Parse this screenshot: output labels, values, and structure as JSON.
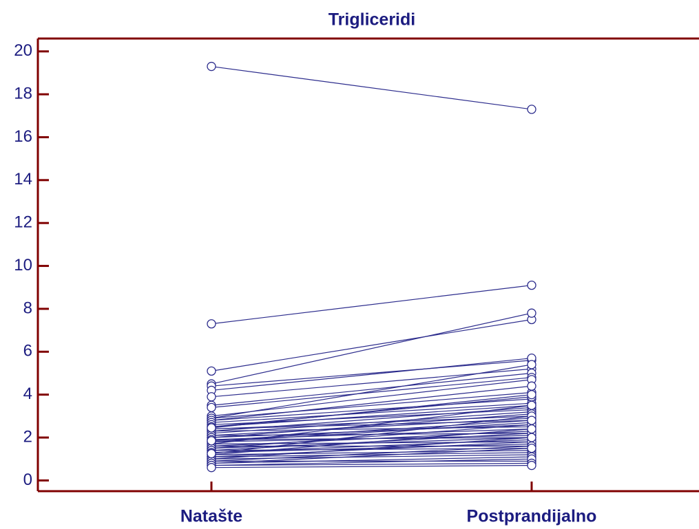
{
  "chart_data": {
    "type": "paired",
    "title": "Trigliceridi",
    "categories": [
      "Natašte",
      "Postprandijalno"
    ],
    "color": "#2b2b8c",
    "axis_color": "#800000",
    "ylim": [
      -0.5,
      20.6
    ],
    "yticks": [
      0,
      2,
      4,
      6,
      8,
      10,
      12,
      14,
      16,
      18,
      20
    ],
    "series": [
      {
        "values": [
          19.3,
          17.3
        ]
      },
      {
        "values": [
          7.3,
          9.1
        ]
      },
      {
        "values": [
          5.1,
          7.5
        ]
      },
      {
        "values": [
          4.5,
          7.8
        ]
      },
      {
        "values": [
          4.4,
          5.6
        ]
      },
      {
        "values": [
          4.2,
          5.7
        ]
      },
      {
        "values": [
          3.9,
          5.2
        ]
      },
      {
        "values": [
          3.5,
          5.0
        ]
      },
      {
        "values": [
          3.4,
          4.8
        ]
      },
      {
        "values": [
          3.0,
          4.7
        ]
      },
      {
        "values": [
          2.9,
          5.4
        ]
      },
      {
        "values": [
          2.9,
          4.1
        ]
      },
      {
        "values": [
          2.8,
          3.8
        ]
      },
      {
        "values": [
          2.8,
          4.4
        ]
      },
      {
        "values": [
          2.7,
          3.6
        ]
      },
      {
        "values": [
          2.6,
          3.3
        ]
      },
      {
        "values": [
          2.5,
          3.9
        ]
      },
      {
        "values": [
          2.5,
          3.5
        ]
      },
      {
        "values": [
          2.4,
          3.0
        ]
      },
      {
        "values": [
          2.4,
          2.8
        ]
      },
      {
        "values": [
          2.3,
          3.4
        ]
      },
      {
        "values": [
          2.3,
          2.5
        ]
      },
      {
        "values": [
          2.2,
          3.2
        ]
      },
      {
        "values": [
          2.1,
          2.9
        ]
      },
      {
        "values": [
          2.1,
          2.2
        ]
      },
      {
        "values": [
          2.0,
          3.1
        ]
      },
      {
        "values": [
          2.0,
          2.6
        ]
      },
      {
        "values": [
          1.9,
          2.4
        ]
      },
      {
        "values": [
          1.9,
          2.0
        ]
      },
      {
        "values": [
          1.8,
          2.7
        ]
      },
      {
        "values": [
          1.8,
          2.1
        ]
      },
      {
        "values": [
          1.7,
          3.5
        ]
      },
      {
        "values": [
          1.7,
          1.8
        ]
      },
      {
        "values": [
          1.6,
          2.3
        ]
      },
      {
        "values": [
          1.6,
          1.6
        ]
      },
      {
        "values": [
          1.5,
          2.6
        ]
      },
      {
        "values": [
          1.5,
          2.0
        ]
      },
      {
        "values": [
          1.4,
          2.2
        ]
      },
      {
        "values": [
          1.4,
          1.5
        ]
      },
      {
        "values": [
          1.3,
          1.9
        ]
      },
      {
        "values": [
          1.3,
          1.7
        ]
      },
      {
        "values": [
          1.2,
          2.4
        ]
      },
      {
        "values": [
          1.2,
          1.4
        ]
      },
      {
        "values": [
          1.1,
          1.8
        ]
      },
      {
        "values": [
          1.1,
          1.3
        ]
      },
      {
        "values": [
          1.0,
          2.0
        ]
      },
      {
        "values": [
          1.0,
          1.2
        ]
      },
      {
        "values": [
          0.9,
          1.6
        ]
      },
      {
        "values": [
          0.9,
          0.9
        ]
      },
      {
        "values": [
          0.8,
          1.5
        ]
      },
      {
        "values": [
          0.8,
          1.1
        ]
      },
      {
        "values": [
          0.7,
          1.0
        ]
      },
      {
        "values": [
          0.7,
          0.8
        ]
      },
      {
        "values": [
          0.6,
          0.7
        ]
      },
      {
        "values": [
          1.25,
          3.0
        ]
      },
      {
        "values": [
          2.45,
          4.0
        ]
      },
      {
        "values": [
          1.85,
          2.8
        ]
      }
    ]
  }
}
